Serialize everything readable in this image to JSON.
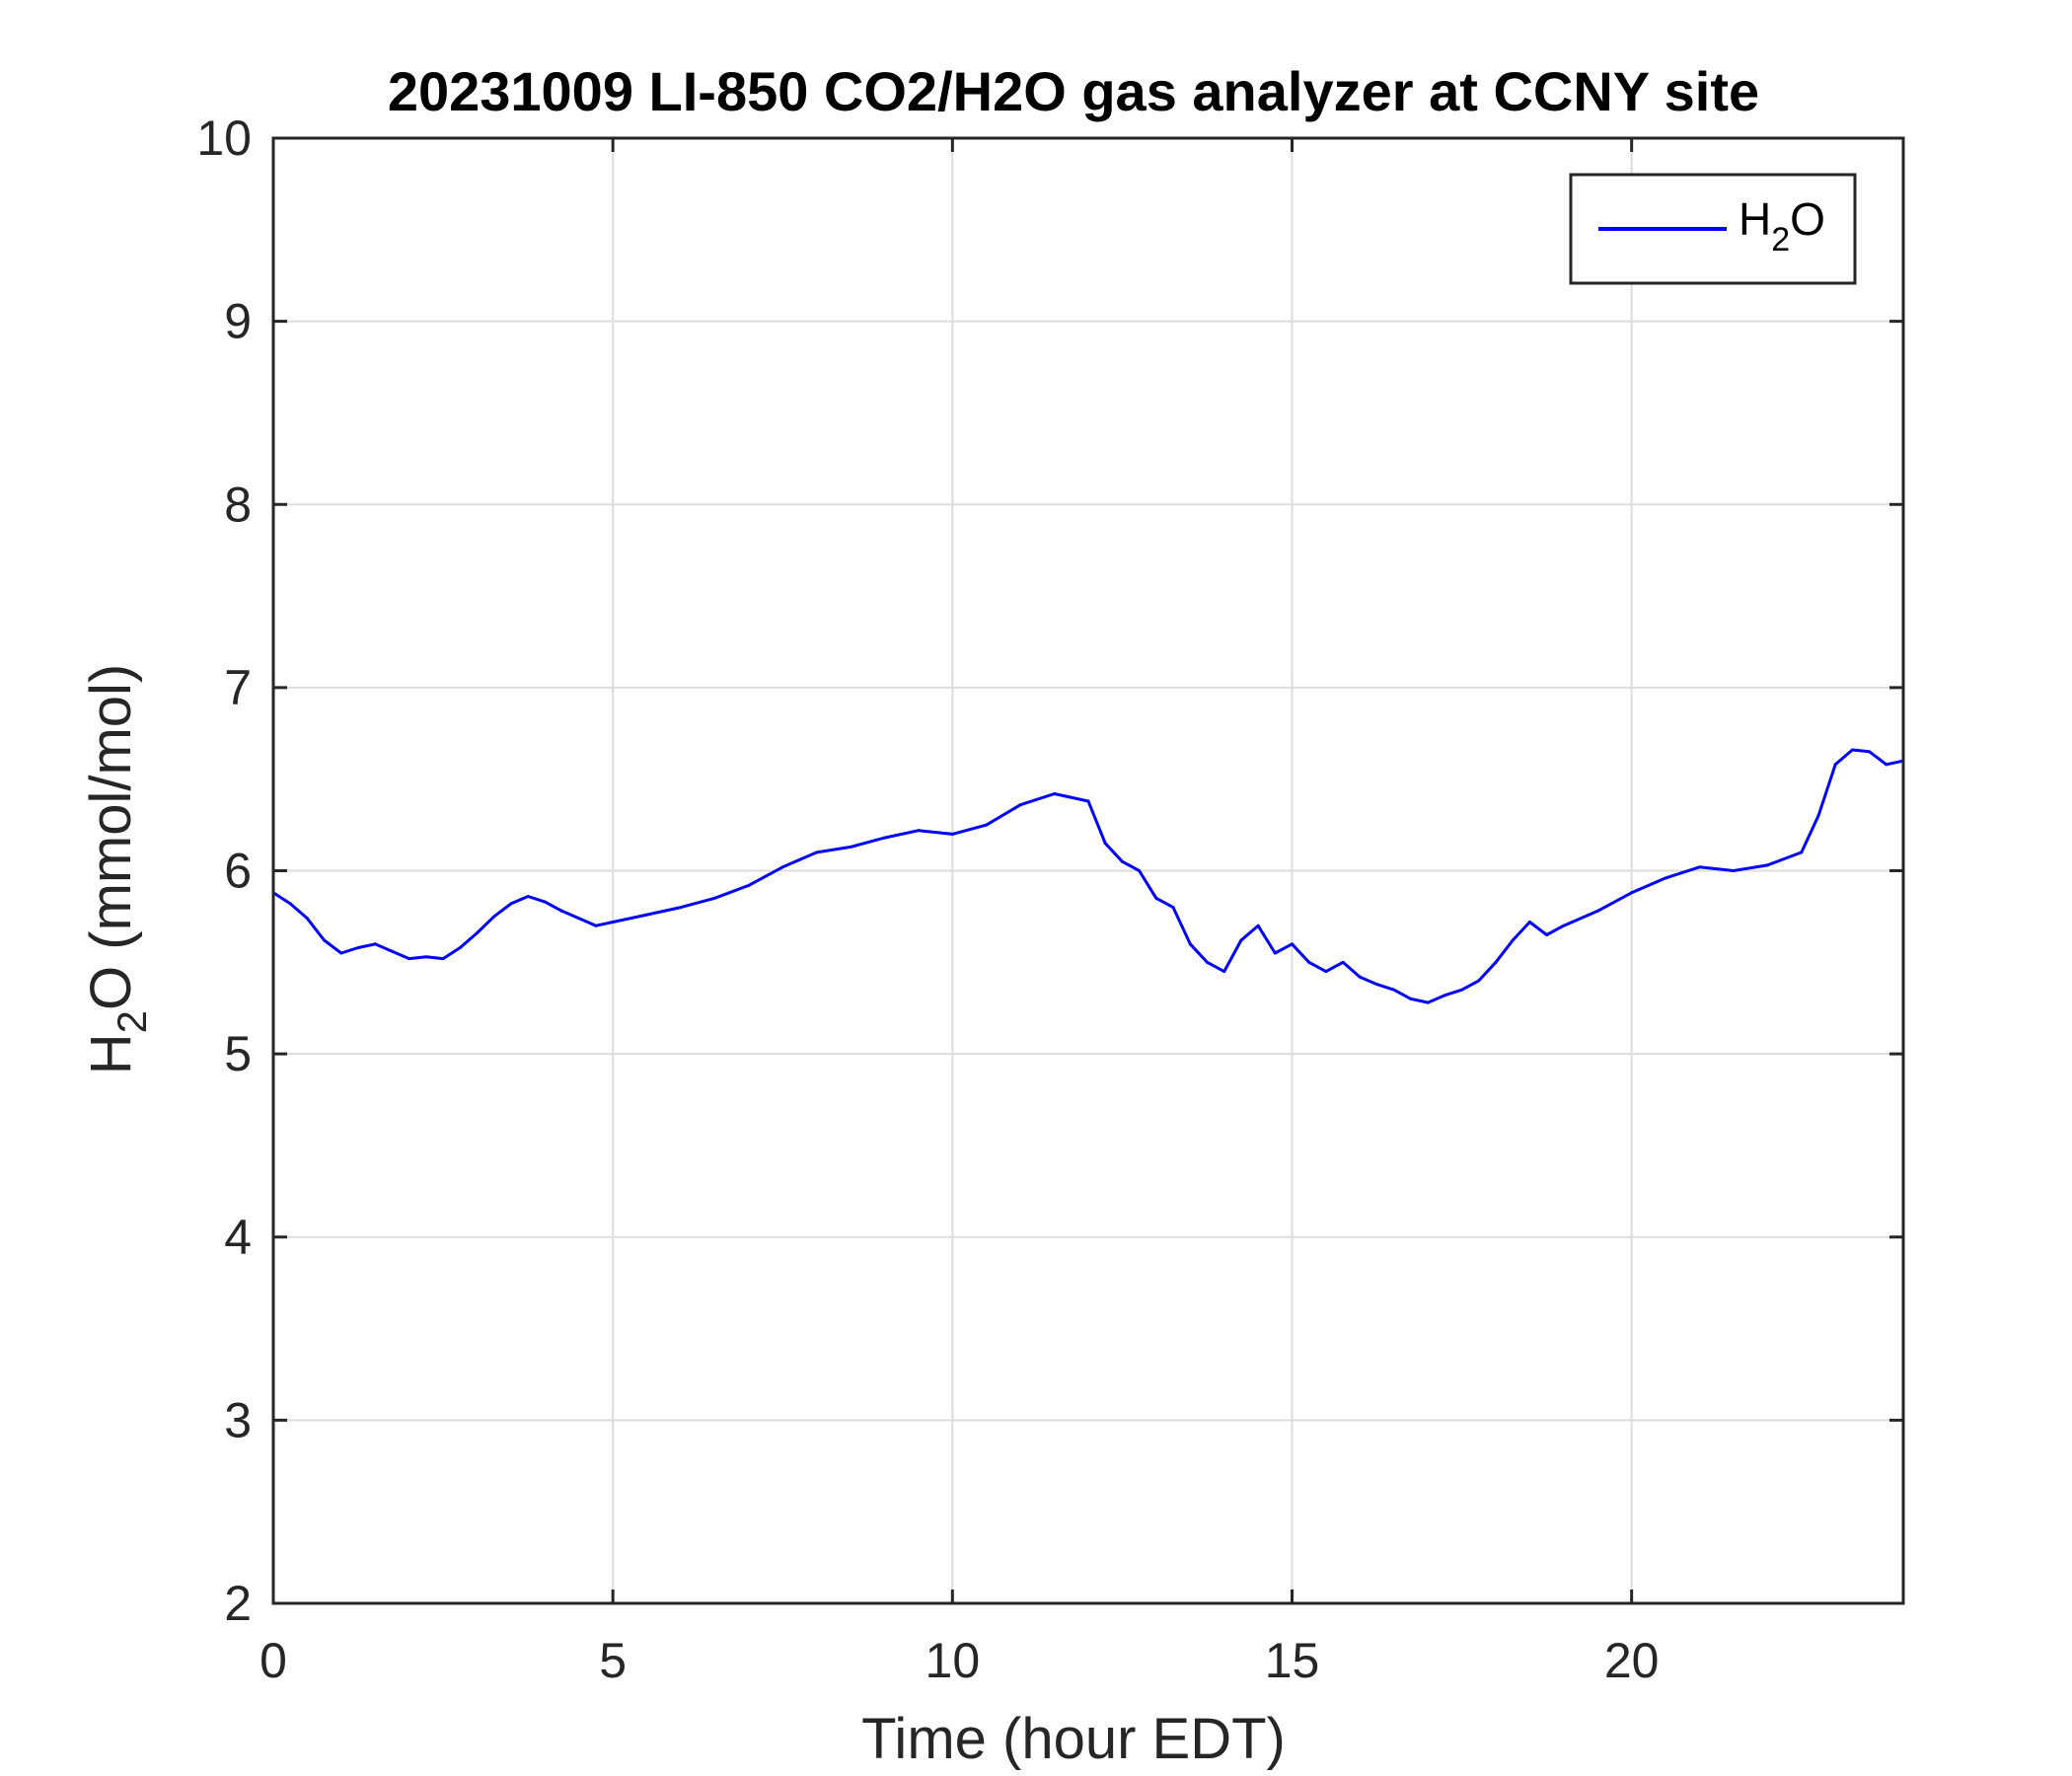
{
  "chart_data": {
    "type": "line",
    "title": "20231009 LI-850 CO2/H2O gas analyzer at CCNY site",
    "xlabel": "Time (hour EDT)",
    "ylabel": {
      "main": "H",
      "sub": "2",
      "rest": "O (mmol/mol)"
    },
    "xlim": [
      0,
      24
    ],
    "ylim": [
      2,
      10
    ],
    "xticks": [
      0,
      5,
      10,
      15,
      20
    ],
    "yticks": [
      2,
      3,
      4,
      5,
      6,
      7,
      8,
      9,
      10
    ],
    "grid": true,
    "legend_position": "top-right",
    "series": [
      {
        "name": {
          "main": "H",
          "sub": "2",
          "rest": "O"
        },
        "color": "#0000ff",
        "x": [
          0,
          0.25,
          0.5,
          0.75,
          1.0,
          1.25,
          1.5,
          1.75,
          2.0,
          2.25,
          2.5,
          2.75,
          3.0,
          3.25,
          3.5,
          3.75,
          4.0,
          4.25,
          4.5,
          4.75,
          5.0,
          5.5,
          6.0,
          6.5,
          7.0,
          7.5,
          8.0,
          8.5,
          9.0,
          9.5,
          10.0,
          10.5,
          11.0,
          11.5,
          12.0,
          12.25,
          12.5,
          12.75,
          13.0,
          13.25,
          13.5,
          13.75,
          14.0,
          14.25,
          14.5,
          14.75,
          15.0,
          15.25,
          15.5,
          15.75,
          16.0,
          16.25,
          16.5,
          16.75,
          17.0,
          17.25,
          17.5,
          17.75,
          18.0,
          18.25,
          18.5,
          18.75,
          19.0,
          19.5,
          20.0,
          20.5,
          21.0,
          21.5,
          22.0,
          22.5,
          22.75,
          23.0,
          23.25,
          23.5,
          23.75,
          24.0
        ],
        "values": [
          5.88,
          5.82,
          5.74,
          5.62,
          5.55,
          5.58,
          5.6,
          5.56,
          5.52,
          5.53,
          5.52,
          5.58,
          5.66,
          5.75,
          5.82,
          5.86,
          5.83,
          5.78,
          5.74,
          5.7,
          5.72,
          5.76,
          5.8,
          5.85,
          5.92,
          6.02,
          6.1,
          6.13,
          6.18,
          6.22,
          6.2,
          6.25,
          6.36,
          6.42,
          6.38,
          6.15,
          6.05,
          6.0,
          5.85,
          5.8,
          5.6,
          5.5,
          5.45,
          5.62,
          5.7,
          5.55,
          5.6,
          5.5,
          5.45,
          5.5,
          5.42,
          5.38,
          5.35,
          5.3,
          5.28,
          5.32,
          5.35,
          5.4,
          5.5,
          5.62,
          5.72,
          5.65,
          5.7,
          5.78,
          5.88,
          5.96,
          6.02,
          6.0,
          6.03,
          6.1,
          6.3,
          6.58,
          6.66,
          6.65,
          6.58,
          6.6
        ]
      }
    ]
  }
}
